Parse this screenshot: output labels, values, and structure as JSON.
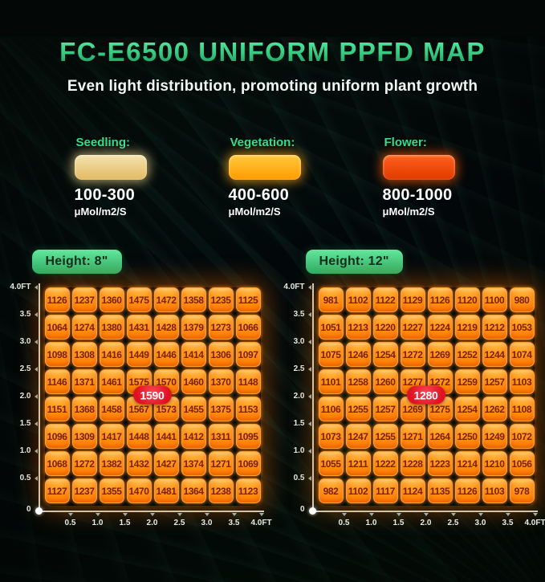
{
  "title": "FC-E6500 UNIFORM PPFD MAP",
  "subtitle": "Even light distribution, promoting uniform plant growth",
  "legend": {
    "items": [
      {
        "label": "Seedling:",
        "range": "100-300",
        "unit": "μMol/m2/S",
        "swatch_top": "#f4e3ae",
        "swatch_bottom": "#e2ba62",
        "glow": "rgba(240,214,140,0.75)"
      },
      {
        "label": "Vegetation:",
        "range": "400-600",
        "unit": "μMol/m2/S",
        "swatch_top": "#ffc93e",
        "swatch_bottom": "#ff9b00",
        "glow": "rgba(255,170,30,0.75)"
      },
      {
        "label": "Flower:",
        "range": "800-1000",
        "unit": "μMol/m2/S",
        "swatch_top": "#ff611c",
        "swatch_bottom": "#e03a00",
        "glow": "rgba(255,90,10,0.75)"
      }
    ]
  },
  "charts": [
    {
      "header": "Height: 8\"",
      "peak_label": "1590",
      "y_ticks": [
        "4.0FT",
        "3.5",
        "3.0",
        "2.5",
        "2.0",
        "1.5",
        "1.0",
        "0.5"
      ],
      "x_ticks": [
        "0.5",
        "1.0",
        "1.5",
        "2.0",
        "2.5",
        "3.0",
        "3.5",
        "4.0FT"
      ],
      "origin_label": "0"
    },
    {
      "header": "Height: 12\"",
      "peak_label": "1280",
      "y_ticks": [
        "4.0FT",
        "3.5",
        "3.0",
        "2.5",
        "2.0",
        "1.5",
        "1.0",
        "0.5"
      ],
      "x_ticks": [
        "0.5",
        "1.0",
        "1.5",
        "2.0",
        "2.5",
        "3.0",
        "3.5",
        "4.0FT"
      ],
      "origin_label": "0"
    }
  ],
  "chart_data": [
    {
      "type": "heatmap",
      "title": "Height: 8\"",
      "xlabel": "FT",
      "ylabel": "FT",
      "x": [
        0.5,
        1.0,
        1.5,
        2.0,
        2.5,
        3.0,
        3.5,
        4.0
      ],
      "y": [
        4.0,
        3.5,
        3.0,
        2.5,
        2.0,
        1.5,
        1.0,
        0.5
      ],
      "units": "μMol/m2/S",
      "peak_annotation": 1590,
      "values": [
        [
          1126,
          1237,
          1360,
          1475,
          1472,
          1358,
          1235,
          1125
        ],
        [
          1064,
          1274,
          1380,
          1431,
          1428,
          1379,
          1273,
          1066
        ],
        [
          1098,
          1308,
          1416,
          1449,
          1446,
          1414,
          1306,
          1097
        ],
        [
          1146,
          1371,
          1461,
          1575,
          1570,
          1460,
          1370,
          1148
        ],
        [
          1151,
          1368,
          1458,
          1567,
          1573,
          1455,
          1375,
          1153
        ],
        [
          1096,
          1309,
          1417,
          1448,
          1441,
          1412,
          1311,
          1095
        ],
        [
          1068,
          1272,
          1382,
          1432,
          1427,
          1374,
          1271,
          1069
        ],
        [
          1127,
          1237,
          1355,
          1470,
          1481,
          1364,
          1238,
          1123
        ]
      ]
    },
    {
      "type": "heatmap",
      "title": "Height: 12\"",
      "xlabel": "FT",
      "ylabel": "FT",
      "x": [
        0.5,
        1.0,
        1.5,
        2.0,
        2.5,
        3.0,
        3.5,
        4.0
      ],
      "y": [
        4.0,
        3.5,
        3.0,
        2.5,
        2.0,
        1.5,
        1.0,
        0.5
      ],
      "units": "μMol/m2/S",
      "peak_annotation": 1280,
      "values": [
        [
          981,
          1102,
          1122,
          1129,
          1126,
          1120,
          1100,
          980
        ],
        [
          1051,
          1213,
          1220,
          1227,
          1224,
          1219,
          1212,
          1053
        ],
        [
          1075,
          1246,
          1254,
          1272,
          1269,
          1252,
          1244,
          1074
        ],
        [
          1101,
          1258,
          1260,
          1277,
          1272,
          1259,
          1257,
          1103
        ],
        [
          1106,
          1255,
          1257,
          1269,
          1275,
          1254,
          1262,
          1108
        ],
        [
          1073,
          1247,
          1255,
          1271,
          1264,
          1250,
          1249,
          1072
        ],
        [
          1055,
          1211,
          1222,
          1228,
          1223,
          1214,
          1210,
          1056
        ],
        [
          982,
          1102,
          1117,
          1124,
          1135,
          1126,
          1103,
          978
        ]
      ]
    }
  ],
  "colors": {
    "accent_green": "#35dd8d",
    "cell_orange": "#ff8c10",
    "cell_text": "#7c2000",
    "badge_red": "#e01123",
    "axis": "#ccd6cf",
    "background": "#030705"
  }
}
